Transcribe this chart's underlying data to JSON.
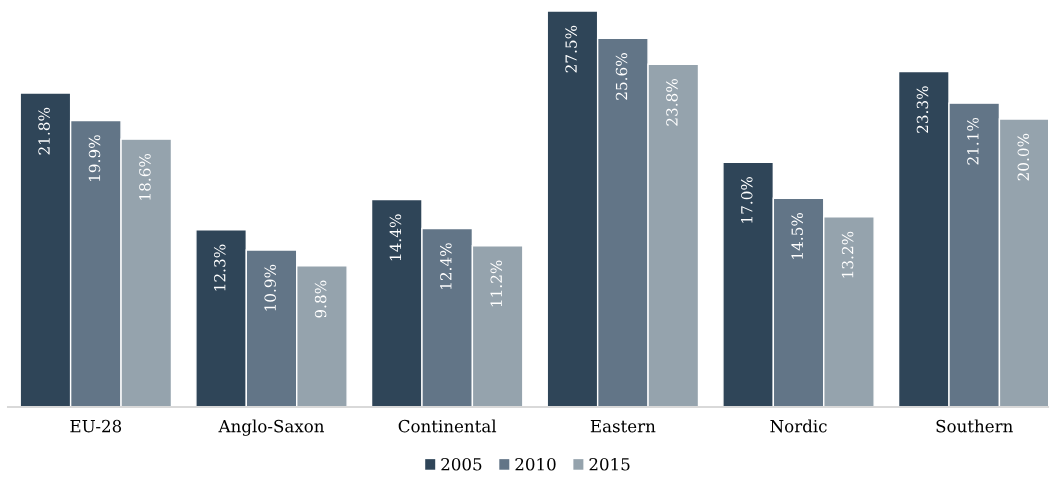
{
  "chart_data": {
    "type": "bar",
    "categories": [
      "EU-28",
      "Anglo-Saxon",
      "Continental",
      "Eastern",
      "Nordic",
      "Southern"
    ],
    "series": [
      {
        "name": "2005",
        "color": "#2f4558",
        "values": [
          21.8,
          12.3,
          14.4,
          27.5,
          17.0,
          23.3
        ],
        "value_labels": [
          "21.8%",
          "12.3%",
          "14.4%",
          "27.5%",
          "17.0%",
          "23.3%"
        ]
      },
      {
        "name": "2010",
        "color": "#627587",
        "values": [
          19.9,
          10.9,
          12.4,
          25.6,
          14.5,
          21.1
        ],
        "value_labels": [
          "19.9%",
          "10.9%",
          "12.4%",
          "25.6%",
          "14.5%",
          "21.1%"
        ]
      },
      {
        "name": "2015",
        "color": "#95a3ad",
        "values": [
          18.6,
          9.8,
          11.2,
          23.8,
          13.2,
          20.0
        ],
        "value_labels": [
          "18.6%",
          "9.8%",
          "11.2%",
          "23.8%",
          "13.2%",
          "20.0%"
        ]
      }
    ],
    "legend": "bottom",
    "tick_labels": "x",
    "grid": false
  }
}
